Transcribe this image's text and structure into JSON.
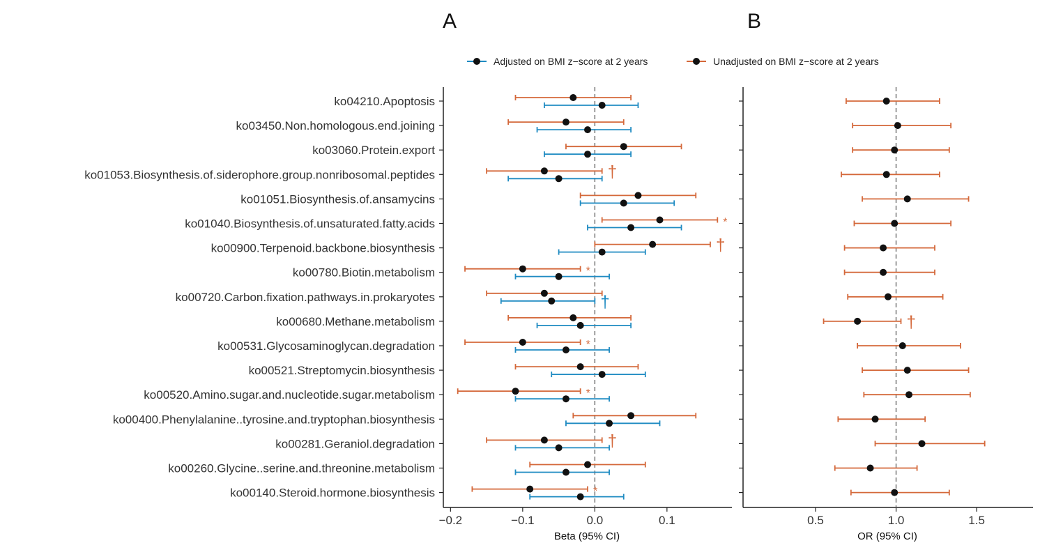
{
  "panel_labels": [
    "A",
    "B"
  ],
  "legend": [
    {
      "label": "Adjusted on BMI z−score at 2 years",
      "color": "#1f8bc2"
    },
    {
      "label": "Unadjusted on BMI z−score at 2 years",
      "color": "#d4683a"
    }
  ],
  "colors": {
    "adjusted": "#1f8bc2",
    "unadjusted": "#d4683a",
    "point": "#111111",
    "axis": "#222222",
    "refline": "#777777"
  },
  "chart_data": [
    {
      "type": "forest",
      "panel": "A",
      "xlabel": "Beta (95% CI)",
      "xlim": [
        -0.21,
        0.19
      ],
      "xticks": [
        -0.2,
        -0.1,
        0.0,
        0.1
      ],
      "xtick_labels": [
        "−0.2",
        "−0.1",
        "0.0",
        "0.1"
      ],
      "reference_line": 0,
      "categories": [
        "ko04210.Apoptosis",
        "ko03450.Non.homologous.end.joining",
        "ko03060.Protein.export",
        "ko01053.Biosynthesis.of.siderophore.group.nonribosomal.peptides",
        "ko01051.Biosynthesis.of.ansamycins",
        "ko01040.Biosynthesis.of.unsaturated.fatty.acids",
        "ko00900.Terpenoid.backbone.biosynthesis",
        "ko00780.Biotin.metabolism",
        "ko00720.Carbon.fixation.pathways.in.prokaryotes",
        "ko00680.Methane.metabolism",
        "ko00531.Glycosaminoglycan.degradation",
        "ko00521.Streptomycin.biosynthesis",
        "ko00520.Amino.sugar.and.nucleotide.sugar.metabolism",
        "ko00400.Phenylalanine..tyrosine.and.tryptophan.biosynthesis",
        "ko00281.Geraniol.degradation",
        "ko00260.Glycine..serine.and.threonine.metabolism",
        "ko00140.Steroid.hormone.biosynthesis"
      ],
      "series": [
        {
          "name": "Unadjusted on BMI z−score at 2 years",
          "estimate": [
            -0.03,
            -0.04,
            0.04,
            -0.07,
            0.06,
            0.09,
            0.08,
            -0.1,
            -0.07,
            -0.03,
            -0.1,
            -0.02,
            -0.11,
            0.05,
            -0.07,
            -0.01,
            -0.09
          ],
          "lower": [
            -0.11,
            -0.12,
            -0.04,
            -0.15,
            -0.02,
            0.01,
            0.0,
            -0.18,
            -0.15,
            -0.12,
            -0.18,
            -0.11,
            -0.19,
            -0.03,
            -0.15,
            -0.09,
            -0.17
          ],
          "upper": [
            0.05,
            0.04,
            0.12,
            0.01,
            0.14,
            0.17,
            0.16,
            -0.02,
            0.01,
            0.05,
            -0.02,
            0.06,
            -0.02,
            0.14,
            0.01,
            0.07,
            -0.01
          ],
          "marks": [
            "",
            "",
            "",
            "†",
            "",
            "*",
            "†",
            "*",
            "",
            "",
            "*",
            "",
            "*",
            "",
            "†",
            "",
            "*"
          ]
        },
        {
          "name": "Adjusted on BMI z−score at 2 years",
          "estimate": [
            0.01,
            -0.01,
            -0.01,
            -0.05,
            0.04,
            0.05,
            0.01,
            -0.05,
            -0.06,
            -0.02,
            -0.04,
            0.01,
            -0.04,
            0.02,
            -0.05,
            -0.04,
            -0.02
          ],
          "lower": [
            -0.07,
            -0.08,
            -0.07,
            -0.12,
            -0.02,
            -0.01,
            -0.05,
            -0.11,
            -0.13,
            -0.08,
            -0.11,
            -0.06,
            -0.11,
            -0.04,
            -0.11,
            -0.11,
            -0.09
          ],
          "upper": [
            0.06,
            0.05,
            0.05,
            0.01,
            0.11,
            0.12,
            0.07,
            0.02,
            0.0,
            0.05,
            0.02,
            0.07,
            0.02,
            0.09,
            0.02,
            0.02,
            0.04
          ],
          "marks": [
            "",
            "",
            "",
            "",
            "",
            "",
            "",
            "",
            "†",
            "",
            "",
            "",
            "",
            "",
            "",
            "",
            ""
          ]
        }
      ]
    },
    {
      "type": "forest",
      "panel": "B",
      "xlabel": "OR (95% CI)",
      "xlim": [
        0.05,
        1.85
      ],
      "xticks": [
        0.5,
        1.0,
        1.5
      ],
      "xtick_labels": [
        "0.5",
        "1.0",
        "1.5"
      ],
      "reference_line": 1,
      "series": [
        {
          "name": "Unadjusted on BMI z−score at 2 years",
          "estimate": [
            0.94,
            1.01,
            0.99,
            0.94,
            1.07,
            0.99,
            0.92,
            0.92,
            0.95,
            0.76,
            1.04,
            1.07,
            1.08,
            0.87,
            1.16,
            0.84,
            0.99
          ],
          "lower": [
            0.69,
            0.73,
            0.73,
            0.66,
            0.79,
            0.74,
            0.68,
            0.68,
            0.7,
            0.55,
            0.76,
            0.79,
            0.8,
            0.64,
            0.87,
            0.62,
            0.72
          ],
          "upper": [
            1.27,
            1.34,
            1.33,
            1.27,
            1.45,
            1.34,
            1.24,
            1.24,
            1.29,
            1.03,
            1.4,
            1.45,
            1.46,
            1.18,
            1.55,
            1.13,
            1.33
          ],
          "marks": [
            "",
            "",
            "",
            "",
            "",
            "",
            "",
            "",
            "",
            "†",
            "",
            "",
            "",
            "",
            "",
            "",
            ""
          ]
        }
      ]
    }
  ]
}
